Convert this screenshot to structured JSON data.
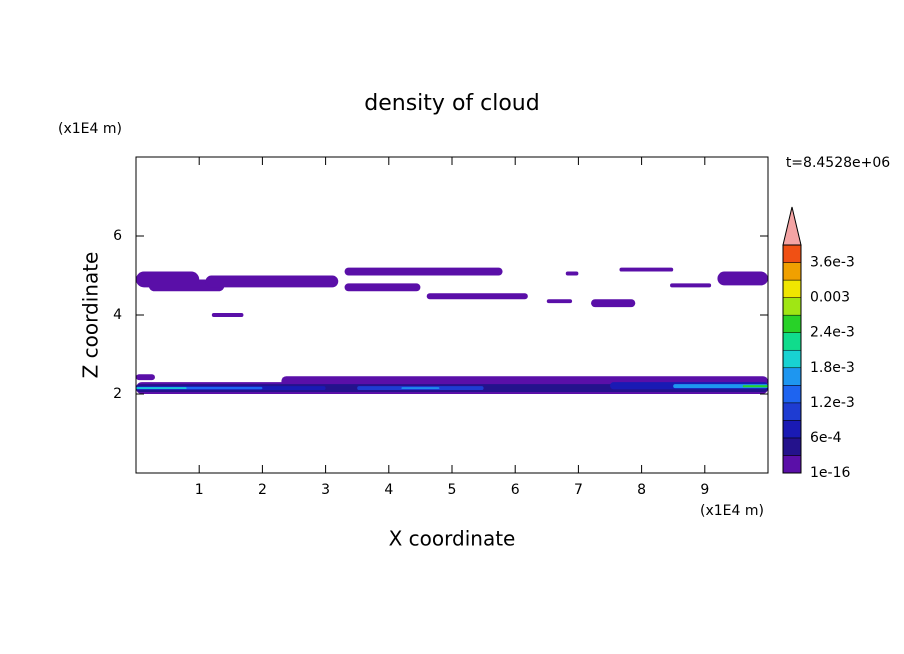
{
  "chart_data": {
    "type": "contour",
    "title": "density of cloud",
    "x_label": "X coordinate",
    "y_label": "Z coordinate",
    "x_unit": "(x1E4 m)",
    "y_unit": "(x1E4 m)",
    "annotation": "t=8.4528e+06",
    "xlim": [
      0,
      10
    ],
    "ylim": [
      0,
      8
    ],
    "xticks": [
      1,
      2,
      3,
      4,
      5,
      6,
      7,
      8,
      9
    ],
    "yticks": [
      2,
      4,
      6
    ],
    "colorbar": {
      "lim": [
        1e-16,
        0.0039
      ],
      "levels": [
        1e-16,
        0.0003,
        0.0006,
        0.0009,
        0.0012,
        0.0015,
        0.0018,
        0.0021,
        0.0024,
        0.0027,
        0.003,
        0.0033,
        0.0036
      ],
      "colors": [
        "#5a0fa8",
        "#24128c",
        "#1a1ab4",
        "#1e3cd2",
        "#1e64f0",
        "#1e96f0",
        "#18d2d2",
        "#10dc8c",
        "#28d228",
        "#a0e614",
        "#f0e600",
        "#f0a000",
        "#f05014"
      ],
      "over_color": "#f4a4a4",
      "ticks": [
        1e-16,
        {
          "value": 0.0006,
          "label": "6e-4"
        },
        {
          "value": 0.0012,
          "label": "1.2e-3"
        },
        {
          "value": 0.0018,
          "label": "1.8e-3"
        },
        {
          "value": 0.0024,
          "label": "2.4e-3"
        },
        0.003,
        {
          "value": 0.0036,
          "label": "3.6e-3"
        }
      ]
    },
    "regions": [
      {
        "x": [
          0,
          1.0
        ],
        "z": [
          4.7,
          5.1
        ],
        "value": 1e-16
      },
      {
        "x": [
          0.2,
          1.4
        ],
        "z": [
          4.6,
          4.9
        ],
        "value": 1e-16
      },
      {
        "x": [
          1.1,
          3.2
        ],
        "z": [
          4.7,
          5.0
        ],
        "value": 1e-16
      },
      {
        "x": [
          3.3,
          4.5
        ],
        "z": [
          4.6,
          4.8
        ],
        "value": 1e-16
      },
      {
        "x": [
          3.3,
          5.8
        ],
        "z": [
          5.0,
          5.2
        ],
        "value": 1e-16
      },
      {
        "x": [
          1.2,
          1.7
        ],
        "z": [
          3.95,
          4.05
        ],
        "value": 1e-16
      },
      {
        "x": [
          4.6,
          6.2
        ],
        "z": [
          4.4,
          4.55
        ],
        "value": 1e-16
      },
      {
        "x": [
          6.5,
          6.9
        ],
        "z": [
          4.3,
          4.4
        ],
        "value": 1e-16
      },
      {
        "x": [
          7.2,
          7.9
        ],
        "z": [
          4.2,
          4.4
        ],
        "value": 1e-16
      },
      {
        "x": [
          6.8,
          7.0
        ],
        "z": [
          5.0,
          5.1
        ],
        "value": 1e-16
      },
      {
        "x": [
          7.65,
          8.5
        ],
        "z": [
          5.1,
          5.2
        ],
        "value": 1e-16
      },
      {
        "x": [
          8.45,
          9.1
        ],
        "z": [
          4.7,
          4.8
        ],
        "value": 1e-16
      },
      {
        "x": [
          9.2,
          10
        ],
        "z": [
          4.75,
          5.1
        ],
        "value": 1e-16
      },
      {
        "x": [
          0,
          10
        ],
        "z": [
          2.0,
          2.3
        ],
        "value": 1e-16
      },
      {
        "x": [
          0,
          0.3
        ],
        "z": [
          2.35,
          2.5
        ],
        "value": 1e-16
      },
      {
        "x": [
          2.3,
          10
        ],
        "z": [
          2.2,
          2.45
        ],
        "value": 1e-16
      },
      {
        "x": [
          0,
          10
        ],
        "z": [
          2.05,
          2.25
        ],
        "value": 0.0003
      },
      {
        "x": [
          0,
          3
        ],
        "z": [
          2.1,
          2.2
        ],
        "value": 0.0006
      },
      {
        "x": [
          0,
          2
        ],
        "z": [
          2.12,
          2.18
        ],
        "value": 0.0012
      },
      {
        "x": [
          0,
          0.8
        ],
        "z": [
          2.13,
          2.17
        ],
        "value": 0.0018
      },
      {
        "x": [
          3.5,
          5.5
        ],
        "z": [
          2.1,
          2.2
        ],
        "value": 0.0009
      },
      {
        "x": [
          4.2,
          4.8
        ],
        "z": [
          2.13,
          2.17
        ],
        "value": 0.0015
      },
      {
        "x": [
          7.5,
          10
        ],
        "z": [
          2.12,
          2.3
        ],
        "value": 0.0006
      },
      {
        "x": [
          8.5,
          10
        ],
        "z": [
          2.15,
          2.25
        ],
        "value": 0.0015
      },
      {
        "x": [
          9.6,
          10
        ],
        "z": [
          2.17,
          2.22
        ],
        "value": 0.0024
      }
    ]
  }
}
